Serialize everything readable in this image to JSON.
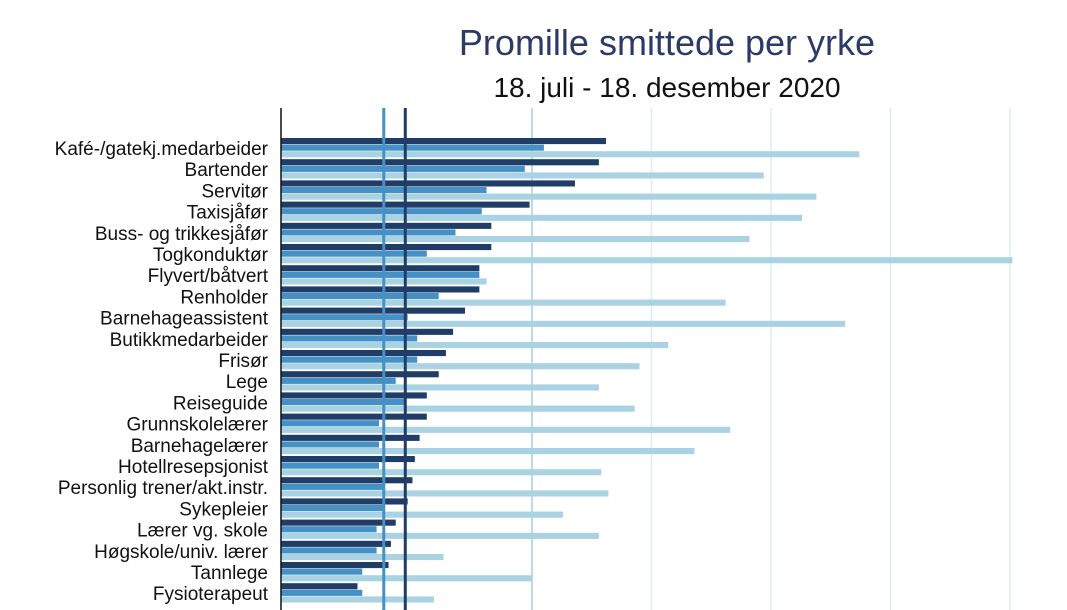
{
  "chart_data": {
    "type": "bar",
    "orientation": "horizontal",
    "title": "Promille smittede per yrke",
    "subtitle": "18. juli - 18. desember 2020",
    "categories": [
      "Kafé-/gatekj.medarbeider",
      "Bartender",
      "Servitør",
      "Taxisjåfør",
      "Buss- og trikkesjåfør",
      "Togkonduktør",
      "Flyvert/båtvert",
      "Renholder",
      "Barnehageassistent",
      "Butikkmedarbeider",
      "Frisør",
      "Lege",
      "Reiseguide",
      "Grunnskolelærer",
      "Barnehagelærer",
      "Hotellresepsjonist",
      "Personlig trener/akt.instr.",
      "Sykepleier",
      "Lærer vg. skole",
      "Høgskole/univ. lærer",
      "Tannlege",
      "Fysioterapeut"
    ],
    "series": [
      {
        "values": [
          13.6,
          13.3,
          12.3,
          10.4,
          8.8,
          8.8,
          8.3,
          8.3,
          7.7,
          7.2,
          6.9,
          6.6,
          6.1,
          6.1,
          5.8,
          5.6,
          5.5,
          5.3,
          4.8,
          4.6,
          4.5,
          3.2
        ],
        "color": "#1f3d66"
      },
      {
        "values": [
          11.0,
          10.2,
          8.6,
          8.4,
          7.3,
          6.1,
          8.3,
          6.6,
          5.3,
          5.7,
          5.7,
          4.8,
          5.2,
          4.1,
          4.1,
          4.1,
          4.3,
          4.3,
          4.0,
          4.0,
          3.4,
          3.4
        ],
        "color": "#4590c4"
      },
      {
        "values": [
          24.2,
          20.2,
          22.4,
          21.8,
          19.6,
          30.6,
          8.6,
          18.6,
          23.6,
          16.2,
          15.0,
          13.3,
          14.8,
          18.8,
          17.3,
          13.4,
          13.7,
          11.8,
          13.3,
          6.8,
          10.5,
          6.4
        ],
        "color": "#a9d2e3"
      }
    ],
    "reference_lines": [
      {
        "value": 4.3,
        "color": "#4590c4"
      },
      {
        "value": 5.2,
        "color": "#1f3d66"
      }
    ],
    "xlim": [
      0,
      31
    ],
    "x_gridlines": [
      10.5,
      15.5,
      20.5,
      25.5,
      30.5
    ],
    "grid": true,
    "tick_labels_visible": false
  }
}
